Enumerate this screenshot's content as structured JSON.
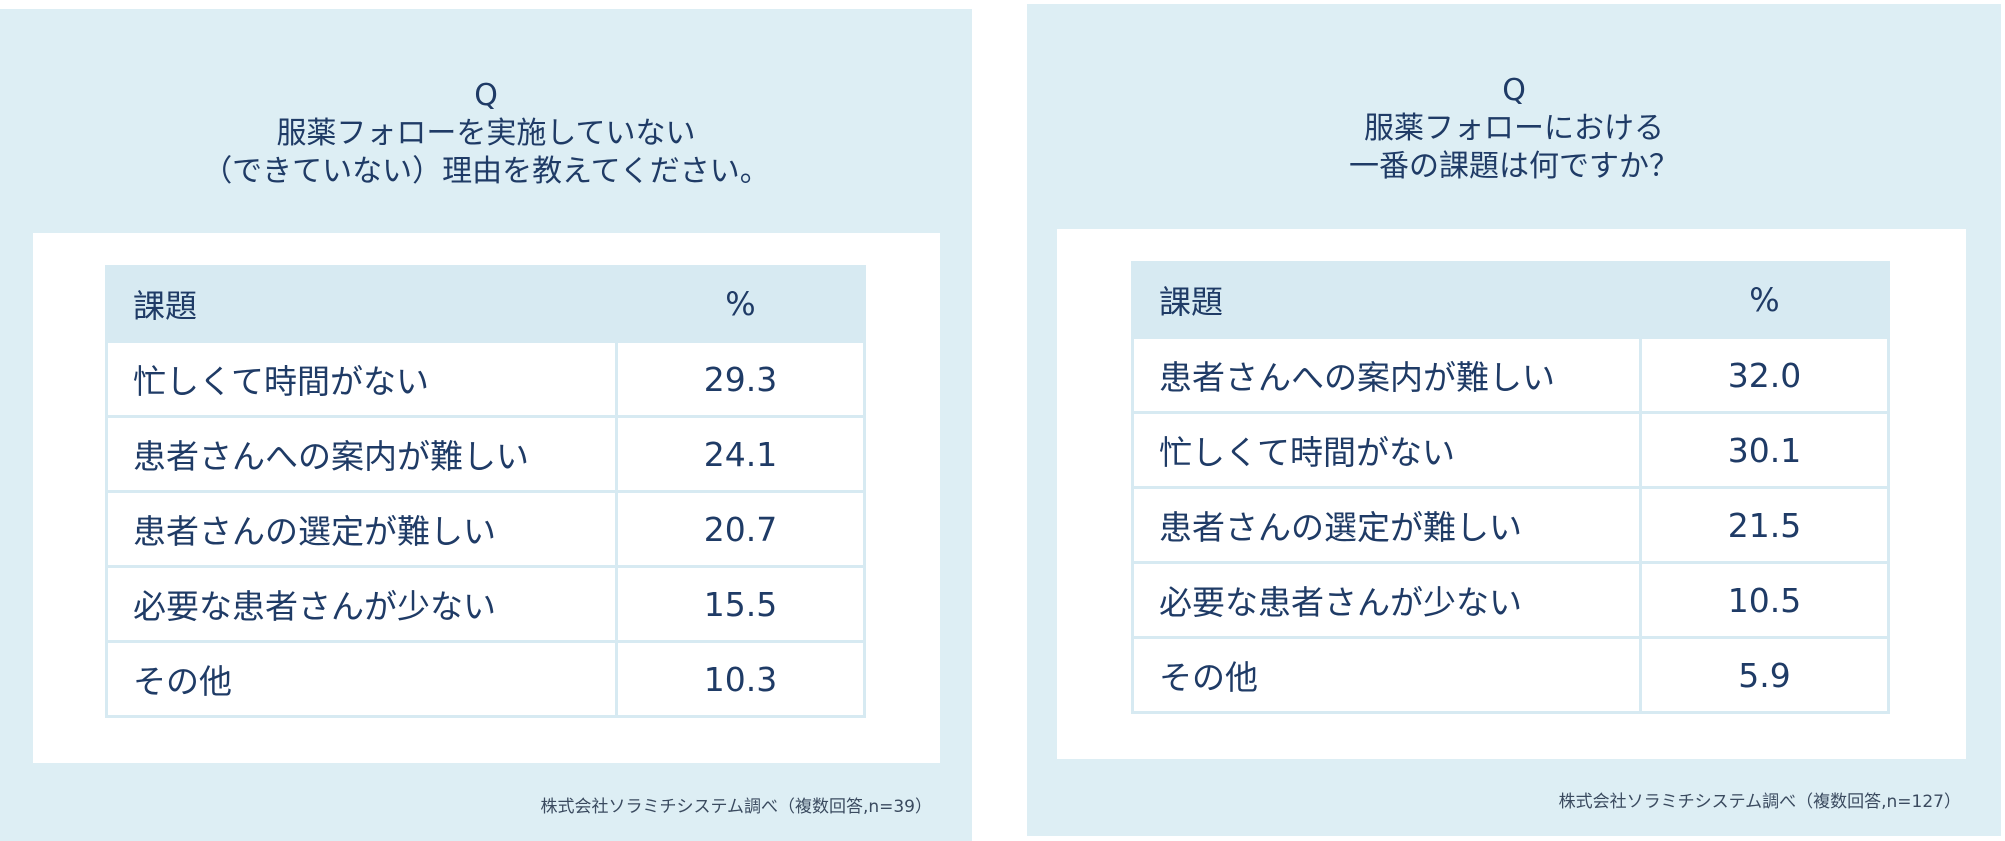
{
  "colors": {
    "panel_bg": "#ddeef4",
    "card_bg": "#ffffff",
    "header_bg": "#d7eaf2",
    "text": "#1f3b66"
  },
  "charts": [
    {
      "q_label": "Q",
      "question_lines": [
        "服薬フォローを実施していない",
        "（できていない）理由を教えてください。"
      ],
      "source": "株式会社ソラミチシステム調べ（複数回答,n=39）"
    },
    {
      "q_label": "Q",
      "question_lines": [
        "服薬フォローにおける",
        "一番の課題は何ですか？"
      ],
      "source": "株式会社ソラミチシステム調べ（複数回答,n=127）"
    }
  ],
  "chart_data": [
    {
      "type": "table",
      "title": "Q 服薬フォローを実施していない（できていない）理由を教えてください。",
      "columns": [
        "課題",
        "%"
      ],
      "rows": [
        [
          "忙しくて時間がない",
          "29.3"
        ],
        [
          "患者さんへの案内が難しい",
          "24.1"
        ],
        [
          "患者さんの選定が難しい",
          "20.7"
        ],
        [
          "必要な患者さんが少ない",
          "15.5"
        ],
        [
          "その他",
          "10.3"
        ]
      ]
    },
    {
      "type": "table",
      "title": "Q 服薬フォローにおける一番の課題は何ですか？",
      "columns": [
        "課題",
        "%"
      ],
      "rows": [
        [
          "患者さんへの案内が難しい",
          "32.0"
        ],
        [
          "忙しくて時間がない",
          "30.1"
        ],
        [
          "患者さんの選定が難しい",
          "21.5"
        ],
        [
          "必要な患者さんが少ない",
          "10.5"
        ],
        [
          "その他",
          "5.9"
        ]
      ]
    }
  ]
}
